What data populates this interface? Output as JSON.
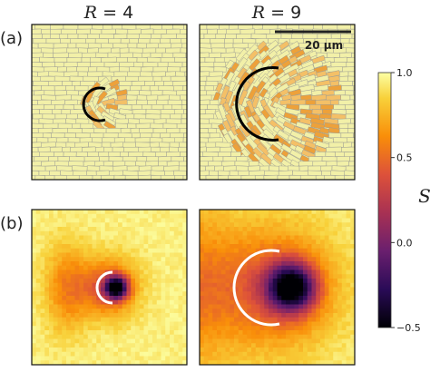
{
  "column_titles": {
    "left": {
      "var": "R",
      "eq": " = 4"
    },
    "right": {
      "var": "R",
      "eq": " = 9"
    }
  },
  "row_labels": {
    "top": "(a)",
    "bottom": "(b)"
  },
  "scale_bar": {
    "label": "20 μm"
  },
  "colorbar": {
    "label": "S",
    "ticks": [
      "1.0",
      "0.5",
      "0.0",
      "−0.5"
    ],
    "tick_values": [
      1.0,
      0.5,
      0.0,
      -0.5
    ],
    "range": [
      -0.5,
      1.0
    ],
    "colormap": "inferno"
  },
  "colors": {
    "cell_fill": "#f2f0a8",
    "cell_stroke": "#9b9b93",
    "defect_orange": "#eda13a",
    "obstacle_top": "#000000",
    "obstacle_bottom": "#ffffff"
  },
  "chart_data": [
    {
      "type": "heatmap",
      "panel": "(a) R = 4",
      "variable": "S",
      "content": "cell tiling colored by S",
      "obstacle_radius": 4
    },
    {
      "type": "heatmap",
      "panel": "(a) R = 9",
      "variable": "S",
      "content": "cell tiling colored by S",
      "obstacle_radius": 9
    },
    {
      "type": "heatmap",
      "panel": "(b) R = 4",
      "variable": "S",
      "content": "averaged S field",
      "obstacle_radius": 4
    },
    {
      "type": "heatmap",
      "panel": "(b) R = 9",
      "variable": "S",
      "content": "averaged S field",
      "obstacle_radius": 9
    }
  ]
}
